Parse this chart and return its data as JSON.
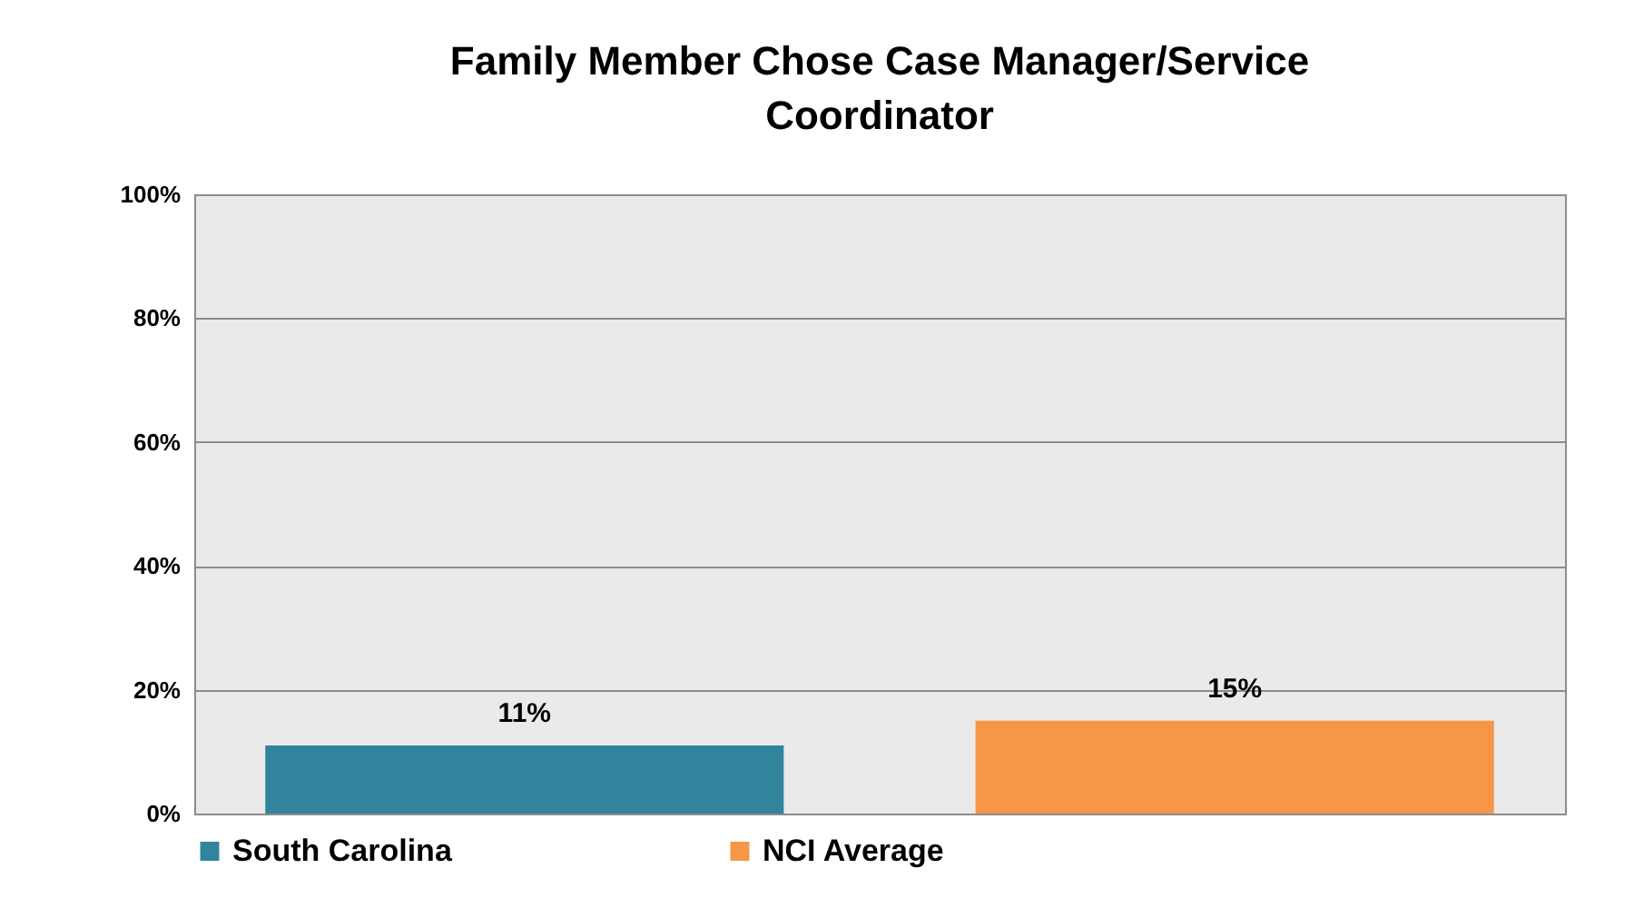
{
  "chart_data": {
    "type": "bar",
    "title": "Family Member Chose Case Manager/Service Coordinator",
    "categories": [
      null,
      null
    ],
    "series": [
      {
        "name": "South Carolina",
        "color": "#31849b",
        "values": [
          11,
          null
        ],
        "value_labels": [
          "11%",
          null
        ]
      },
      {
        "name": "NCI Average",
        "color": "#f79646",
        "values": [
          null,
          15
        ],
        "value_labels": [
          null,
          "15%"
        ]
      }
    ],
    "ylim": [
      0,
      100
    ],
    "yticks": [
      {
        "value": 0,
        "label": "0%"
      },
      {
        "value": 20,
        "label": "20%"
      },
      {
        "value": 40,
        "label": "40%"
      },
      {
        "value": 60,
        "label": "60%"
      },
      {
        "value": 80,
        "label": "80%"
      },
      {
        "value": 100,
        "label": "100%"
      }
    ],
    "grid": "y",
    "legend": "bottom",
    "tick_labels": "y"
  }
}
